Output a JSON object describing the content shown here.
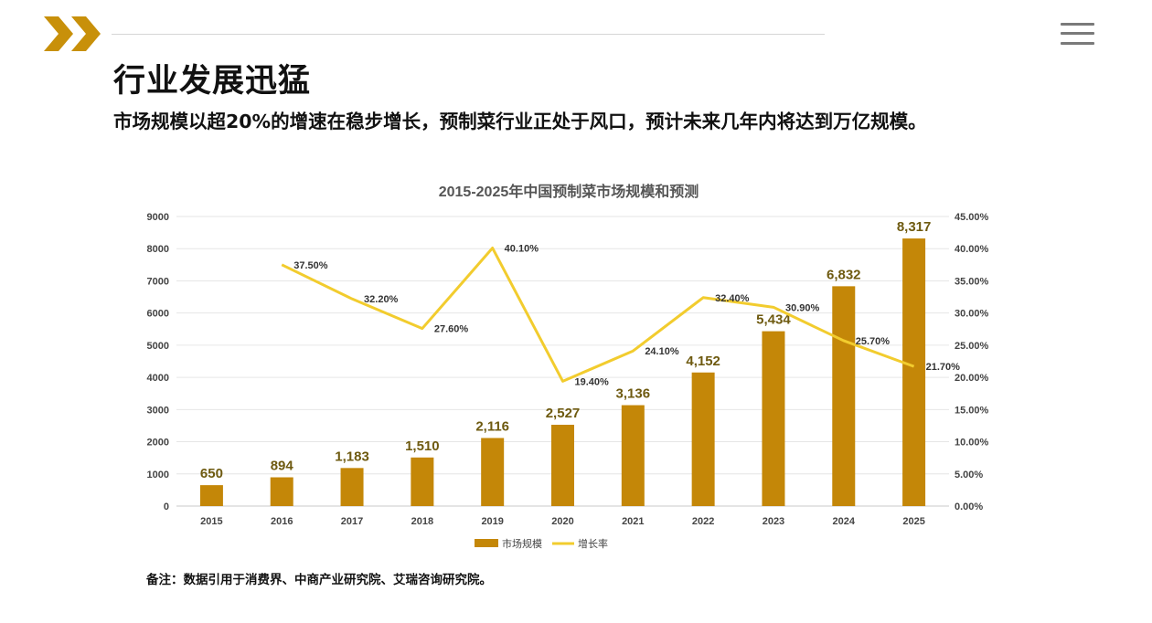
{
  "header": {
    "logo_icon": "double-chevron-right-icon",
    "menu_icon": "hamburger-menu-icon",
    "title": "行业发展迅猛",
    "subtitle": "市场规模以超20%的增速在稳步增长，预制菜行业正处于风口，预计未来几年内将达到万亿规模。"
  },
  "colors": {
    "accent": "#C8900A",
    "bar": "#C48708",
    "line": "#F2CC2E",
    "bar_label": "#6E5A10"
  },
  "chart_data": {
    "type": "bar",
    "title": "2015-2025年中国预制菜市场规模和预测",
    "categories": [
      "2015",
      "2016",
      "2017",
      "2018",
      "2019",
      "2020",
      "2021",
      "2022",
      "2023",
      "2024",
      "2025"
    ],
    "series": [
      {
        "name": "市场规模",
        "type": "bar",
        "axis": "left",
        "values": [
          650,
          894,
          1183,
          1510,
          2116,
          2527,
          3136,
          4152,
          5434,
          6832,
          8317
        ],
        "labels": [
          "650",
          "894",
          "1,183",
          "1,510",
          "2,116",
          "2,527",
          "3,136",
          "4,152",
          "5,434",
          "6,832",
          "8,317"
        ]
      },
      {
        "name": "增长率",
        "type": "line",
        "axis": "right",
        "values": [
          null,
          37.5,
          32.2,
          27.6,
          40.1,
          19.4,
          24.1,
          32.4,
          30.9,
          25.7,
          21.7
        ],
        "labels": [
          "",
          "37.50%",
          "32.20%",
          "27.60%",
          "40.10%",
          "19.40%",
          "24.10%",
          "32.40%",
          "30.90%",
          "25.70%",
          "21.70%"
        ]
      }
    ],
    "y_left": {
      "min": 0,
      "max": 9000,
      "ticks": [
        "0",
        "1000",
        "2000",
        "3000",
        "4000",
        "5000",
        "6000",
        "7000",
        "8000",
        "9000"
      ]
    },
    "y_right": {
      "min": 0,
      "max": 45,
      "ticks": [
        "0.00%",
        "5.00%",
        "10.00%",
        "15.00%",
        "20.00%",
        "25.00%",
        "30.00%",
        "35.00%",
        "40.00%",
        "45.00%"
      ]
    },
    "grid": true,
    "legend": "bottom-center"
  },
  "footer": {
    "note": "备注：数据引用于消费界、中商产业研究院、艾瑞咨询研究院。"
  }
}
